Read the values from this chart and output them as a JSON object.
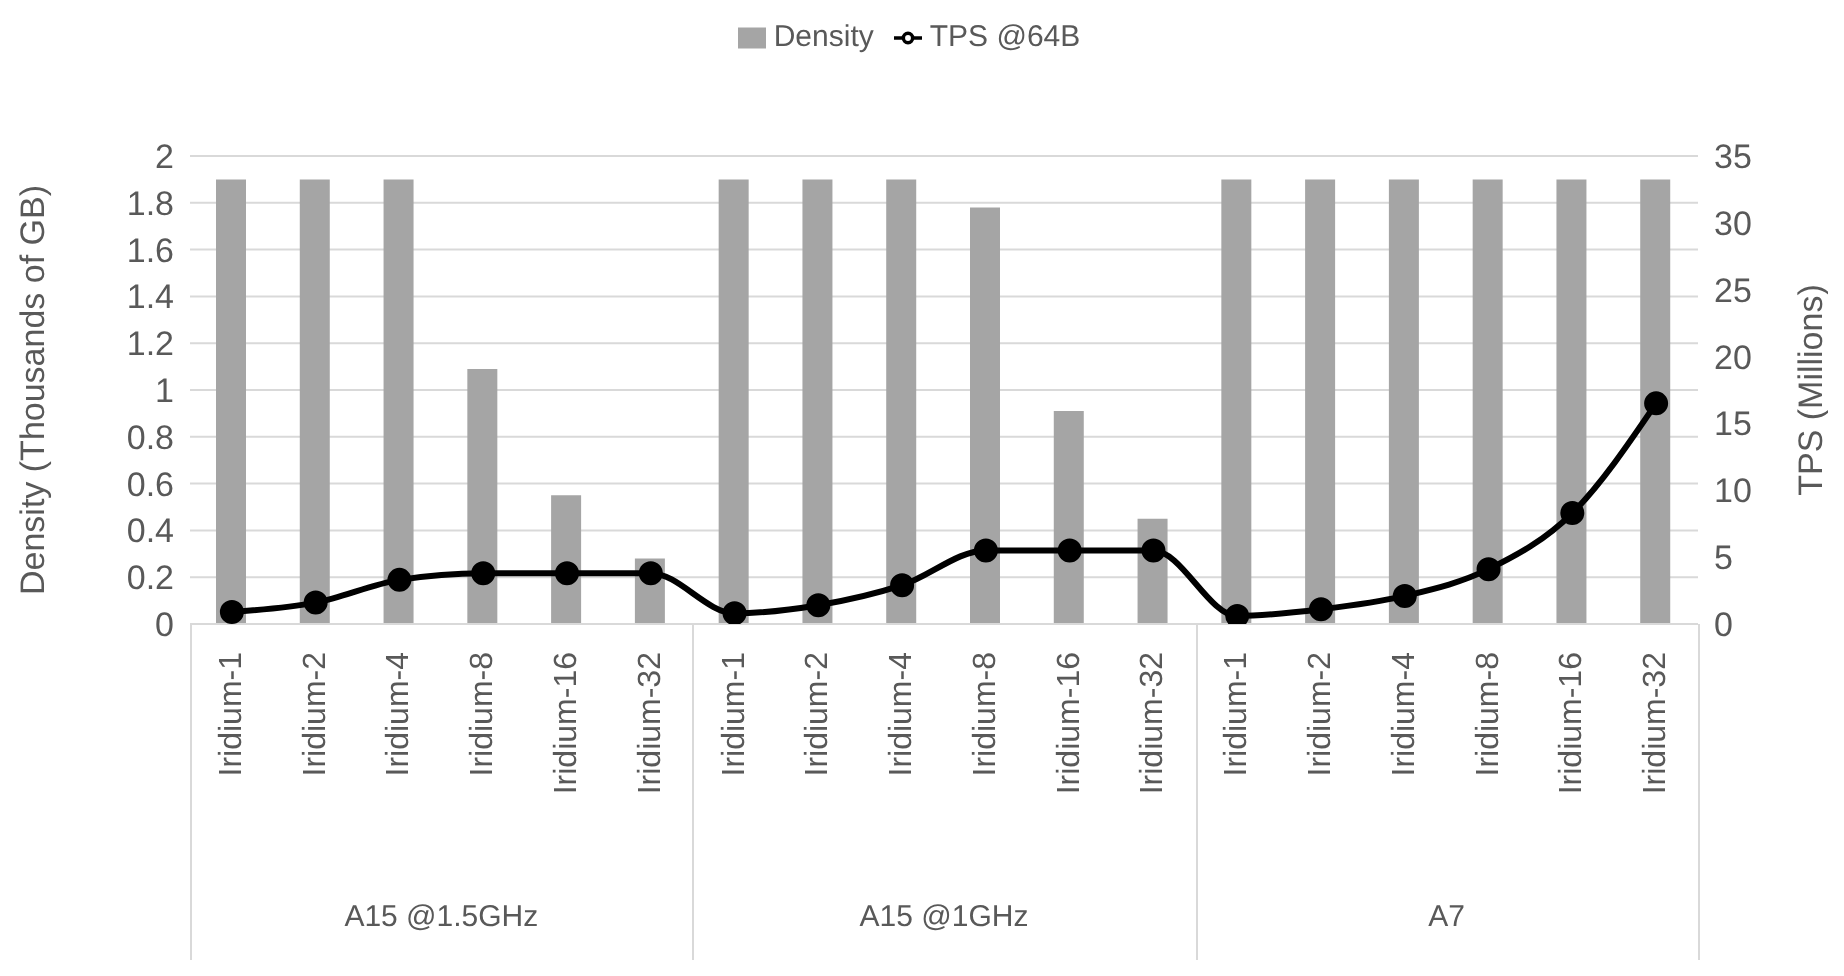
{
  "chart_data": {
    "type": "bar",
    "categories": [
      "Iridium-1",
      "Iridium-2",
      "Iridium-4",
      "Iridium-8",
      "Iridium-16",
      "Iridium-32",
      "Iridium-1",
      "Iridium-2",
      "Iridium-4",
      "Iridium-8",
      "Iridium-16",
      "Iridium-32",
      "Iridium-1",
      "Iridium-2",
      "Iridium-4",
      "Iridium-8",
      "Iridium-16",
      "Iridium-32"
    ],
    "series": [
      {
        "name": "Density",
        "color": "#a5a5a5",
        "values": [
          1.9,
          1.9,
          1.9,
          1.09,
          0.55,
          0.28,
          1.9,
          1.9,
          1.9,
          1.78,
          0.91,
          0.45,
          1.9,
          1.9,
          1.9,
          1.9,
          1.9,
          1.9
        ]
      },
      {
        "name": "TPS @64B",
        "type": "line",
        "axis": "y2",
        "color": "#000000",
        "marker": "circle",
        "values": [
          0.9,
          1.6,
          3.3,
          3.8,
          3.8,
          3.8,
          0.8,
          1.4,
          2.9,
          5.5,
          5.5,
          5.5,
          0.6,
          1.1,
          2.1,
          4.1,
          8.3,
          16.5
        ]
      }
    ],
    "ylabel": "Density (Thousands of GB)",
    "y2label": "TPS (Millions)",
    "ylim": [
      0,
      2
    ],
    "yticks": [
      0,
      0.2,
      0.4,
      0.6,
      0.8,
      1,
      1.2,
      1.4,
      1.6,
      1.8,
      2
    ],
    "y2lim": [
      0,
      35
    ],
    "y2ticks": [
      0,
      5,
      10,
      15,
      20,
      25,
      30,
      35
    ],
    "grid": "y",
    "legend": "top",
    "annotations": [
      "A15 @1.5GHz",
      "A15 @1GHz",
      "A7"
    ]
  }
}
